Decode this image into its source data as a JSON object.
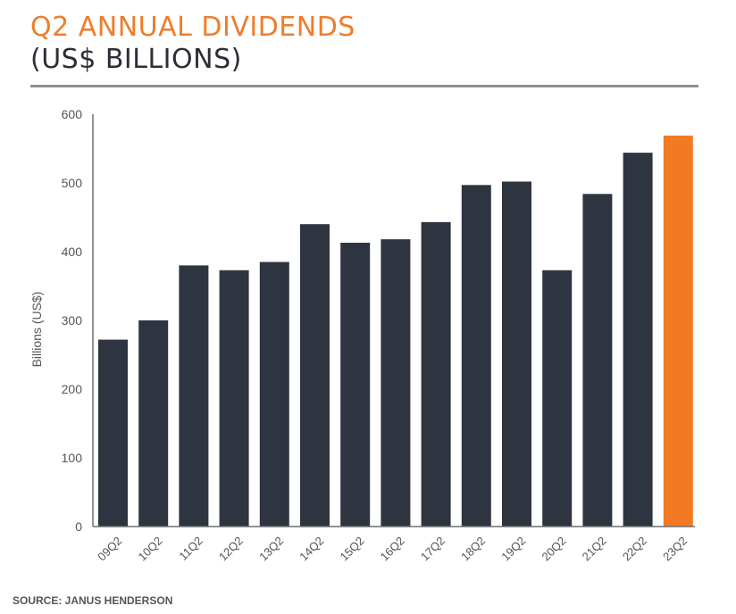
{
  "header": {
    "title": "Q2 ANNUAL DIVIDENDS",
    "subtitle": "(US$ BILLIONS)"
  },
  "footer": {
    "source": "SOURCE: JANUS HENDERSON"
  },
  "colors": {
    "bar": "#2f3441",
    "highlight_bar": "#f27a22",
    "axis": "#6e6e6e",
    "tick_text": "#555555",
    "title": "#ef7d2c"
  },
  "chart_data": {
    "type": "bar",
    "title": "Q2 ANNUAL DIVIDENDS",
    "subtitle": "(US$ BILLIONS)",
    "xlabel": "",
    "ylabel": "Billions (US$)",
    "ylim": [
      0,
      600
    ],
    "yticks": [
      0,
      100,
      200,
      300,
      400,
      500,
      600
    ],
    "grid": false,
    "legend": "none",
    "categories": [
      "09Q2",
      "10Q2",
      "11Q2",
      "12Q2",
      "13Q2",
      "14Q2",
      "15Q2",
      "16Q2",
      "17Q2",
      "18Q2",
      "19Q2",
      "20Q2",
      "21Q2",
      "22Q2",
      "23Q2"
    ],
    "values": [
      272,
      300,
      380,
      373,
      385,
      440,
      413,
      418,
      443,
      497,
      502,
      373,
      484,
      544,
      569
    ],
    "highlight_index": 14
  }
}
